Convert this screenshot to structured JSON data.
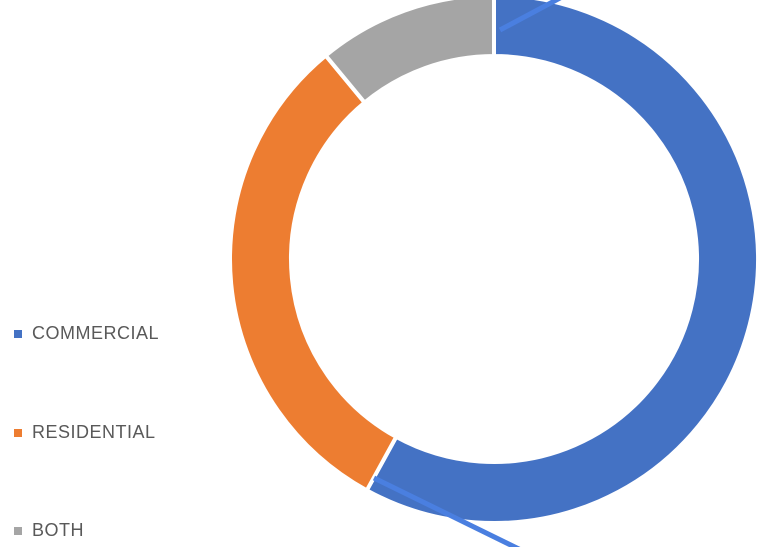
{
  "chart_data": {
    "type": "pie",
    "variant": "donut",
    "title": "",
    "categories": [
      "COMMERCIAL",
      "RESIDENTIAL",
      "BOTH"
    ],
    "values": [
      58,
      31,
      11
    ],
    "colors": [
      "#4472C4",
      "#ED7D31",
      "#A5A5A5"
    ],
    "legend_placement": "left",
    "grid": false
  }
}
